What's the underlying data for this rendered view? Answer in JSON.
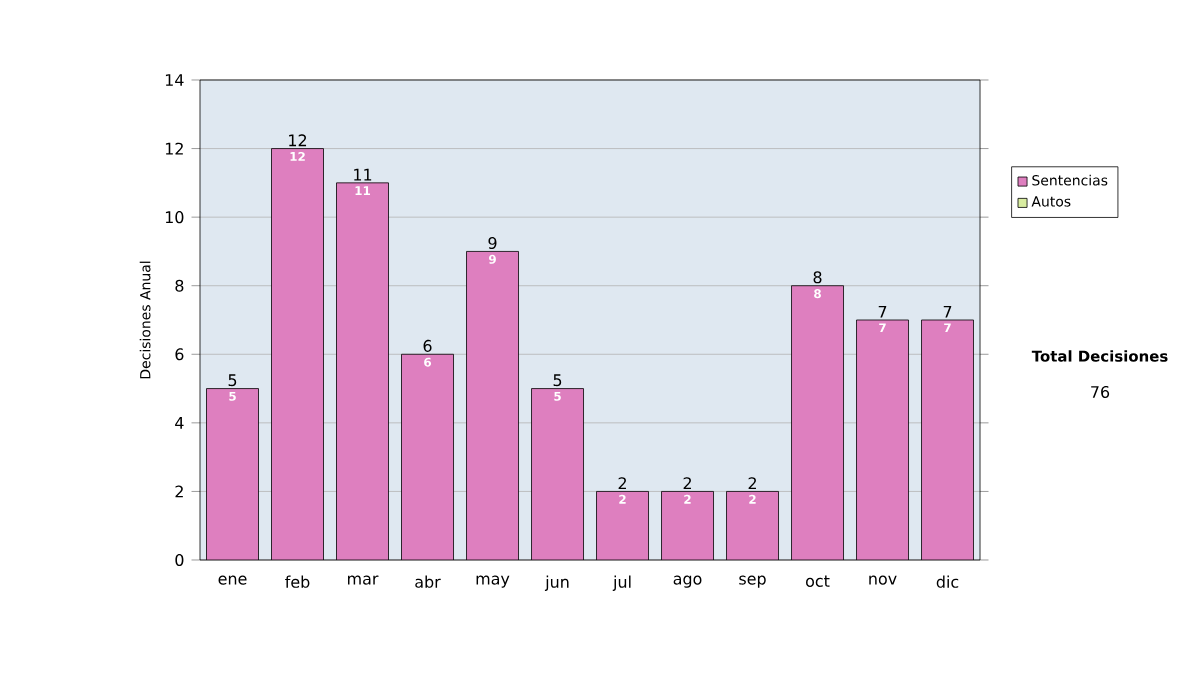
{
  "chart_data": {
    "type": "bar",
    "ylabel": "Decisiones Anual",
    "categories": [
      "ene",
      "feb",
      "mar",
      "abr",
      "may",
      "jun",
      "jul",
      "ago",
      "sep",
      "oct",
      "nov",
      "dic"
    ],
    "series": [
      {
        "name": "Sentencias",
        "color": "#de7fbf",
        "values": [
          5,
          12,
          11,
          6,
          9,
          5,
          2,
          2,
          2,
          8,
          7,
          7
        ],
        "value_labels": [
          "5",
          "12",
          "11",
          "6",
          "9",
          "5",
          "2",
          "2",
          "2",
          "8",
          "7",
          "7"
        ]
      },
      {
        "name": "Autos",
        "color": "#d8eca0",
        "values": [
          0,
          0,
          0,
          0,
          0,
          0,
          0,
          0,
          0,
          0,
          0,
          0
        ]
      }
    ],
    "stacked": true,
    "totals": [
      "5",
      "12",
      "11",
      "6",
      "9",
      "5",
      "2",
      "2",
      "2",
      "8",
      "7",
      "7"
    ],
    "ylim": [
      0,
      14
    ],
    "yticks": [
      0,
      2,
      4,
      6,
      8,
      10,
      12,
      14
    ],
    "grid": "y",
    "legend": "right",
    "annotations": [
      "Total Decisiones",
      "76"
    ]
  }
}
